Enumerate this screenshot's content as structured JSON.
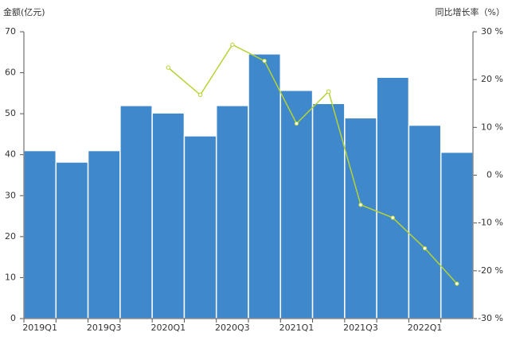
{
  "chart_data": {
    "type": "bar-line",
    "ylabel": "金额(亿元)",
    "y2label": "同比增长率（%）",
    "categories": [
      "2019Q1",
      null,
      "2019Q3",
      null,
      "2020Q1",
      null,
      "2020Q3",
      null,
      "2021Q1",
      null,
      "2021Q3",
      null,
      "2022Q1",
      null
    ],
    "series": [
      {
        "type": "bar",
        "color": "#3f88cc",
        "values": [
          41,
          38.2,
          41,
          52,
          50.2,
          44.6,
          52,
          64.6,
          55.7,
          52.5,
          49,
          58.9,
          47.2,
          40.6
        ]
      },
      {
        "type": "line",
        "axis": "y2",
        "color": "#b5d334",
        "values": [
          null,
          null,
          null,
          null,
          22.5,
          16.8,
          27.3,
          23.9,
          10.8,
          17.5,
          -6.2,
          -8.9,
          -15.3,
          -22.7
        ]
      }
    ],
    "ylim": [
      0,
      70
    ],
    "yticks": [
      0,
      10,
      20,
      30,
      40,
      50,
      60,
      70
    ],
    "y2lim": [
      -30,
      30
    ],
    "y2ticks": [
      {
        "value": -30,
        "label": "-30 %"
      },
      {
        "value": -20,
        "label": "-20 %"
      },
      {
        "value": -10,
        "label": "-10 %"
      },
      {
        "value": 0,
        "label": "0 %"
      },
      {
        "value": 10,
        "label": "10 %"
      },
      {
        "value": 20,
        "label": "20 %"
      },
      {
        "value": 30,
        "label": "30 %"
      }
    ]
  }
}
